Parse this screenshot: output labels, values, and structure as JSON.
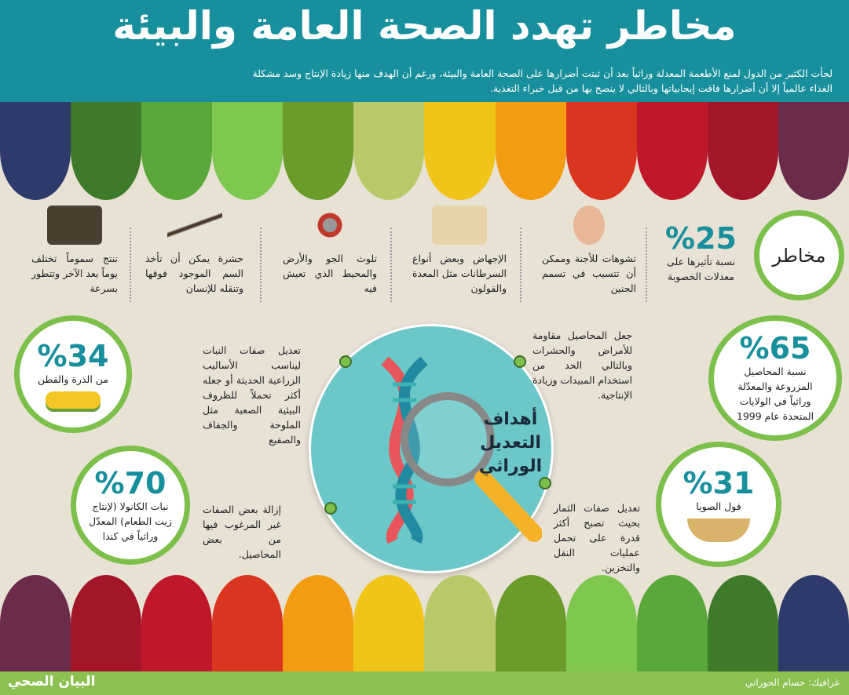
{
  "header": {
    "title": "مخاطر تهدد الصحة العامة والبيئة",
    "intro": "لجأت الكثير من الدول لمنع الأطعمة المعدلة وراثياً بعد أن ثبتت أضرارها على الصحة العامة والبيئة، ورغم أن الهدف منها زيادة الإنتاج وسد مشكلة الغذاء عالمياً إلا أن أضرارها فاقت إيجابياتها وبالتالي لا ينصح بها من قبل خبراء التغذية."
  },
  "colors": {
    "teal": "#178f9c",
    "green": "#7cc04b",
    "beige": "#e8e2d5",
    "footer": "#8cc152"
  },
  "fruit_strip": [
    "#2e3a6b",
    "#3d7a2a",
    "#5aa83a",
    "#7ec850",
    "#6b9b2a",
    "#b9c96a",
    "#f0c419",
    "#f39c12",
    "#d9351f",
    "#c0182b",
    "#a3162a",
    "#6b2b4a"
  ],
  "risks": {
    "title": "مخاطر",
    "fertility": {
      "value": "%25",
      "text": "نسبة تأثيرها على معدلات الخصوبة"
    },
    "items": [
      {
        "icon": "fetus-icon",
        "text": "تشوهات للأجنة وممكن أن تتسبب في تسمم الجنين"
      },
      {
        "icon": "cell-icon",
        "text": "الإجهاض وبعض أنواع السرطانات مثل المعدة والقولون"
      },
      {
        "icon": "molecule-icon",
        "text": "تلوث الجو والأرض والمحيط الذي تعيش فيه"
      },
      {
        "icon": "mosquito-icon",
        "text": "حشرة يمكن أن تأخذ السم الموجود فوقها وتنقله للإنسان"
      },
      {
        "icon": "seeds-icon",
        "text": "تنتج سموماً تختلف يوماً بعد الآخر وتتطور بسرعة"
      }
    ]
  },
  "stats": [
    {
      "value": "%34",
      "text": "من الذرة والقطن",
      "icon": "corn-icon"
    },
    {
      "value": "%70",
      "text": "نبات الكانولا (لإنتاج زيت الطعام) المعدّل وراثياً في كندا"
    },
    {
      "value": "%65",
      "text": "نسبة المحاصيل المزروعة والمعدّلة وراثياً في الولايات المتحدة عام 1999"
    },
    {
      "value": "%31",
      "text": "فول الصويا",
      "icon": "soybean-icon"
    }
  ],
  "goals": {
    "title": "أهداف التعديل الوراثي",
    "items": [
      "تعديل صفات النبات ليناسب الأساليب الزراعية الحديثة أو جعله أكثر تحملاً للظروف البيئية الصعبة مثل الملوحة والجفاف والصقيع",
      "جعل المحاصيل مقاومة للأمراض والحشرات وبالتالي الحد من استخدام المبيدات وزيادة الإنتاجية.",
      "إزالة بعض الصفات غير المرغوب فيها من بعض المحاصيل.",
      "تعديل صفات الثمار بحيث تصبح أكثر قدرة على تحمل عمليات النقل والتخزين."
    ]
  },
  "footer": {
    "credit": "غرافيك: حسام الحوراني",
    "logo": "البيان الصحي"
  }
}
